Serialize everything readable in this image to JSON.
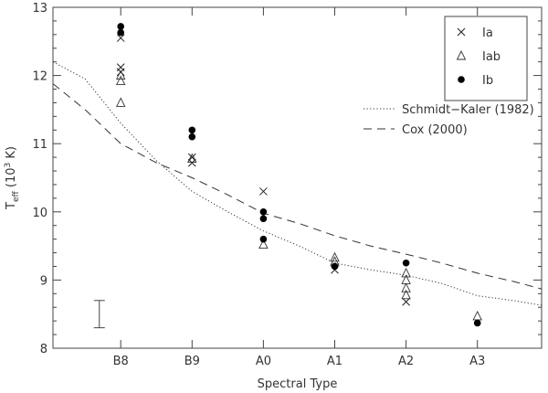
{
  "chart_data": {
    "type": "scatter",
    "xlabel": "Spectral Type",
    "ylabel_main": "T",
    "ylabel_sub": "eff",
    "ylabel_pre": " (10",
    "ylabel_sup": "3",
    "ylabel_post": " K)",
    "categories": [
      "B8",
      "B9",
      "A0",
      "A1",
      "A2",
      "A3"
    ],
    "xlim": [
      -0.95,
      5.9
    ],
    "ylim": [
      8.0,
      13.0
    ],
    "yticks": [
      8,
      9,
      10,
      11,
      12,
      13
    ],
    "grid": false,
    "legend_position": "top-right",
    "series": [
      {
        "name": "Ia",
        "marker": "cross",
        "points": [
          [
            0,
            12.55
          ],
          [
            0,
            12.12
          ],
          [
            0,
            12.05
          ],
          [
            1,
            10.8
          ],
          [
            1,
            10.72
          ],
          [
            2,
            10.3
          ],
          [
            3,
            9.15
          ],
          [
            4,
            8.68
          ]
        ]
      },
      {
        "name": "Iab",
        "marker": "triangle",
        "points": [
          [
            0,
            12.0
          ],
          [
            0,
            11.92
          ],
          [
            0,
            11.6
          ],
          [
            1,
            10.78
          ],
          [
            2,
            9.52
          ],
          [
            3,
            9.33
          ],
          [
            3,
            9.27
          ],
          [
            4,
            9.1
          ],
          [
            4,
            9.0
          ],
          [
            4,
            8.88
          ],
          [
            4,
            8.78
          ],
          [
            5,
            8.47
          ]
        ]
      },
      {
        "name": "Ib",
        "marker": "dot",
        "points": [
          [
            0,
            12.72
          ],
          [
            0,
            12.63
          ],
          [
            1,
            11.2
          ],
          [
            1,
            11.1
          ],
          [
            2,
            10.0
          ],
          [
            2,
            9.9
          ],
          [
            2,
            9.6
          ],
          [
            3,
            9.2
          ],
          [
            4,
            9.25
          ],
          [
            5,
            8.37
          ]
        ]
      }
    ],
    "curves": [
      {
        "name": "Schmidt−Kaler (1982)",
        "style": "dotted",
        "x": [
          -0.95,
          -0.5,
          0,
          0.5,
          1,
          1.5,
          2,
          2.5,
          3,
          3.5,
          4,
          4.5,
          5,
          5.5,
          5.9
        ],
        "y": [
          12.2,
          11.95,
          11.3,
          10.75,
          10.3,
          10.0,
          9.72,
          9.5,
          9.25,
          9.15,
          9.07,
          8.95,
          8.77,
          8.7,
          8.63
        ]
      },
      {
        "name": "Cox (2000)",
        "style": "dashed",
        "x": [
          -0.95,
          -0.5,
          0,
          0.5,
          1,
          1.5,
          2,
          2.5,
          3,
          3.5,
          4,
          4.5,
          5,
          5.5,
          5.9
        ],
        "y": [
          11.88,
          11.5,
          11.0,
          10.72,
          10.5,
          10.25,
          9.98,
          9.83,
          9.65,
          9.5,
          9.38,
          9.25,
          9.1,
          8.98,
          8.87
        ]
      }
    ],
    "error_bar": {
      "x": -0.3,
      "y_low": 8.3,
      "y_high": 8.7
    }
  }
}
